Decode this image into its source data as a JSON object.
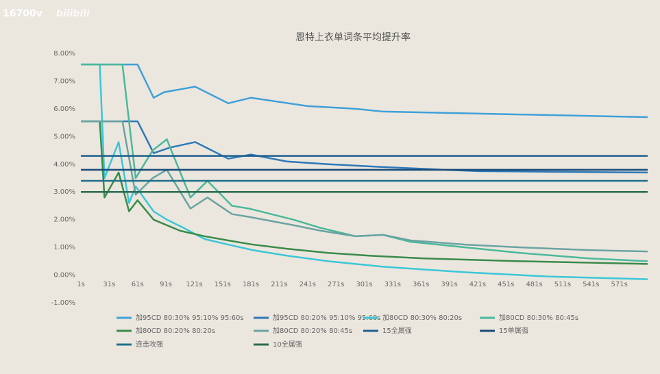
{
  "watermark": {
    "id": "16700v",
    "brand": "bilibili"
  },
  "chart_data": {
    "type": "line",
    "title": "恩特上衣单词条平均提升率",
    "xlim": [
      1,
      601
    ],
    "xticks": [
      {
        "value": 1,
        "label": "1s"
      },
      {
        "value": 31,
        "label": "31s"
      },
      {
        "value": 61,
        "label": "61s"
      },
      {
        "value": 91,
        "label": "91s"
      },
      {
        "value": 121,
        "label": "121s"
      },
      {
        "value": 151,
        "label": "151s"
      },
      {
        "value": 181,
        "label": "181s"
      },
      {
        "value": 211,
        "label": "211s"
      },
      {
        "value": 241,
        "label": "241s"
      },
      {
        "value": 271,
        "label": "271s"
      },
      {
        "value": 301,
        "label": "301s"
      },
      {
        "value": 331,
        "label": "331s"
      },
      {
        "value": 361,
        "label": "361s"
      },
      {
        "value": 391,
        "label": "391s"
      },
      {
        "value": 421,
        "label": "421s"
      },
      {
        "value": 451,
        "label": "451s"
      },
      {
        "value": 481,
        "label": "481s"
      },
      {
        "value": 511,
        "label": "511s"
      },
      {
        "value": 541,
        "label": "541s"
      },
      {
        "value": 571,
        "label": "571s"
      }
    ],
    "ylim": [
      -1,
      8
    ],
    "yticks": [
      {
        "value": -1,
        "label": "-1.00%"
      },
      {
        "value": 0,
        "label": "0.00%"
      },
      {
        "value": 1,
        "label": "1.00%"
      },
      {
        "value": 2,
        "label": "2.00%"
      },
      {
        "value": 3,
        "label": "3.00%"
      },
      {
        "value": 4,
        "label": "4.00%"
      },
      {
        "value": 5,
        "label": "5.00%"
      },
      {
        "value": 6,
        "label": "6.00%"
      },
      {
        "value": 7,
        "label": "7.00%"
      },
      {
        "value": 8,
        "label": "8.00%"
      }
    ],
    "grid": false,
    "series": [
      {
        "name": "加95CD 80:30% 95:10% 95:60s",
        "color": "#3fa0d8",
        "x": [
          1,
          61,
          78,
          89,
          122,
          157,
          181,
          241,
          292,
          321,
          601
        ],
        "values": [
          7.6,
          7.6,
          6.4,
          6.6,
          6.8,
          6.2,
          6.4,
          6.1,
          6.0,
          5.9,
          5.7
        ]
      },
      {
        "name": "加95CD 80:20% 95:10% 95:60s",
        "color": "#2e78b8",
        "x": [
          1,
          61,
          78,
          95,
          122,
          157,
          181,
          219,
          263,
          321,
          386,
          422,
          601
        ],
        "values": [
          5.55,
          5.55,
          4.4,
          4.6,
          4.8,
          4.2,
          4.35,
          4.1,
          4.0,
          3.9,
          3.8,
          3.75,
          3.7
        ]
      },
      {
        "name": "加80CD 80:30% 80:20s",
        "color": "#3cc6d8",
        "x": [
          1,
          21,
          26,
          41,
          52,
          59,
          78,
          92,
          110,
          132,
          157,
          183,
          219,
          263,
          321,
          408,
          495,
          601
        ],
        "values": [
          7.6,
          7.6,
          3.5,
          4.8,
          2.6,
          3.2,
          2.3,
          2.0,
          1.7,
          1.3,
          1.1,
          0.9,
          0.7,
          0.5,
          0.3,
          0.1,
          -0.05,
          -0.15
        ]
      },
      {
        "name": "加80CD 80:30% 80:45s",
        "color": "#4bb89a",
        "x": [
          1,
          45,
          59,
          77,
          92,
          117,
          135,
          161,
          179,
          226,
          255,
          292,
          321,
          350,
          408,
          466,
          539,
          601
        ],
        "values": [
          7.6,
          7.6,
          3.5,
          4.5,
          4.9,
          2.8,
          3.4,
          2.5,
          2.4,
          2.0,
          1.7,
          1.4,
          1.45,
          1.2,
          1.0,
          0.8,
          0.6,
          0.5
        ]
      },
      {
        "name": "加80CD 80:20% 80:20s",
        "color": "#3a8a4a",
        "x": [
          1,
          21,
          26,
          41,
          52,
          61,
          78,
          106,
          132,
          157,
          183,
          219,
          263,
          306,
          364,
          466,
          601
        ],
        "values": [
          5.55,
          5.55,
          2.8,
          3.7,
          2.3,
          2.7,
          2.0,
          1.6,
          1.4,
          1.25,
          1.1,
          0.95,
          0.8,
          0.7,
          0.6,
          0.5,
          0.4
        ]
      },
      {
        "name": "加80CD 80:20% 80:45s",
        "color": "#6aa3a3",
        "x": [
          1,
          45,
          59,
          77,
          92,
          117,
          135,
          161,
          179,
          226,
          255,
          292,
          321,
          350,
          408,
          466,
          539,
          601
        ],
        "values": [
          5.55,
          5.55,
          2.9,
          3.5,
          3.8,
          2.4,
          2.8,
          2.2,
          2.1,
          1.8,
          1.6,
          1.4,
          1.45,
          1.25,
          1.1,
          1.0,
          0.9,
          0.85
        ]
      },
      {
        "name": "15全属强",
        "color": "#1f5f8f",
        "x": [
          1,
          601
        ],
        "values": [
          4.3,
          4.3
        ]
      },
      {
        "name": "15单属强",
        "color": "#1a4a78",
        "x": [
          1,
          601
        ],
        "values": [
          3.8,
          3.8
        ]
      },
      {
        "name": "连击攻强",
        "color": "#1f6f88",
        "x": [
          1,
          601
        ],
        "values": [
          3.4,
          3.4
        ]
      },
      {
        "name": "10全属强",
        "color": "#2a6a50",
        "x": [
          1,
          601
        ],
        "values": [
          3.0,
          3.0
        ]
      }
    ]
  }
}
